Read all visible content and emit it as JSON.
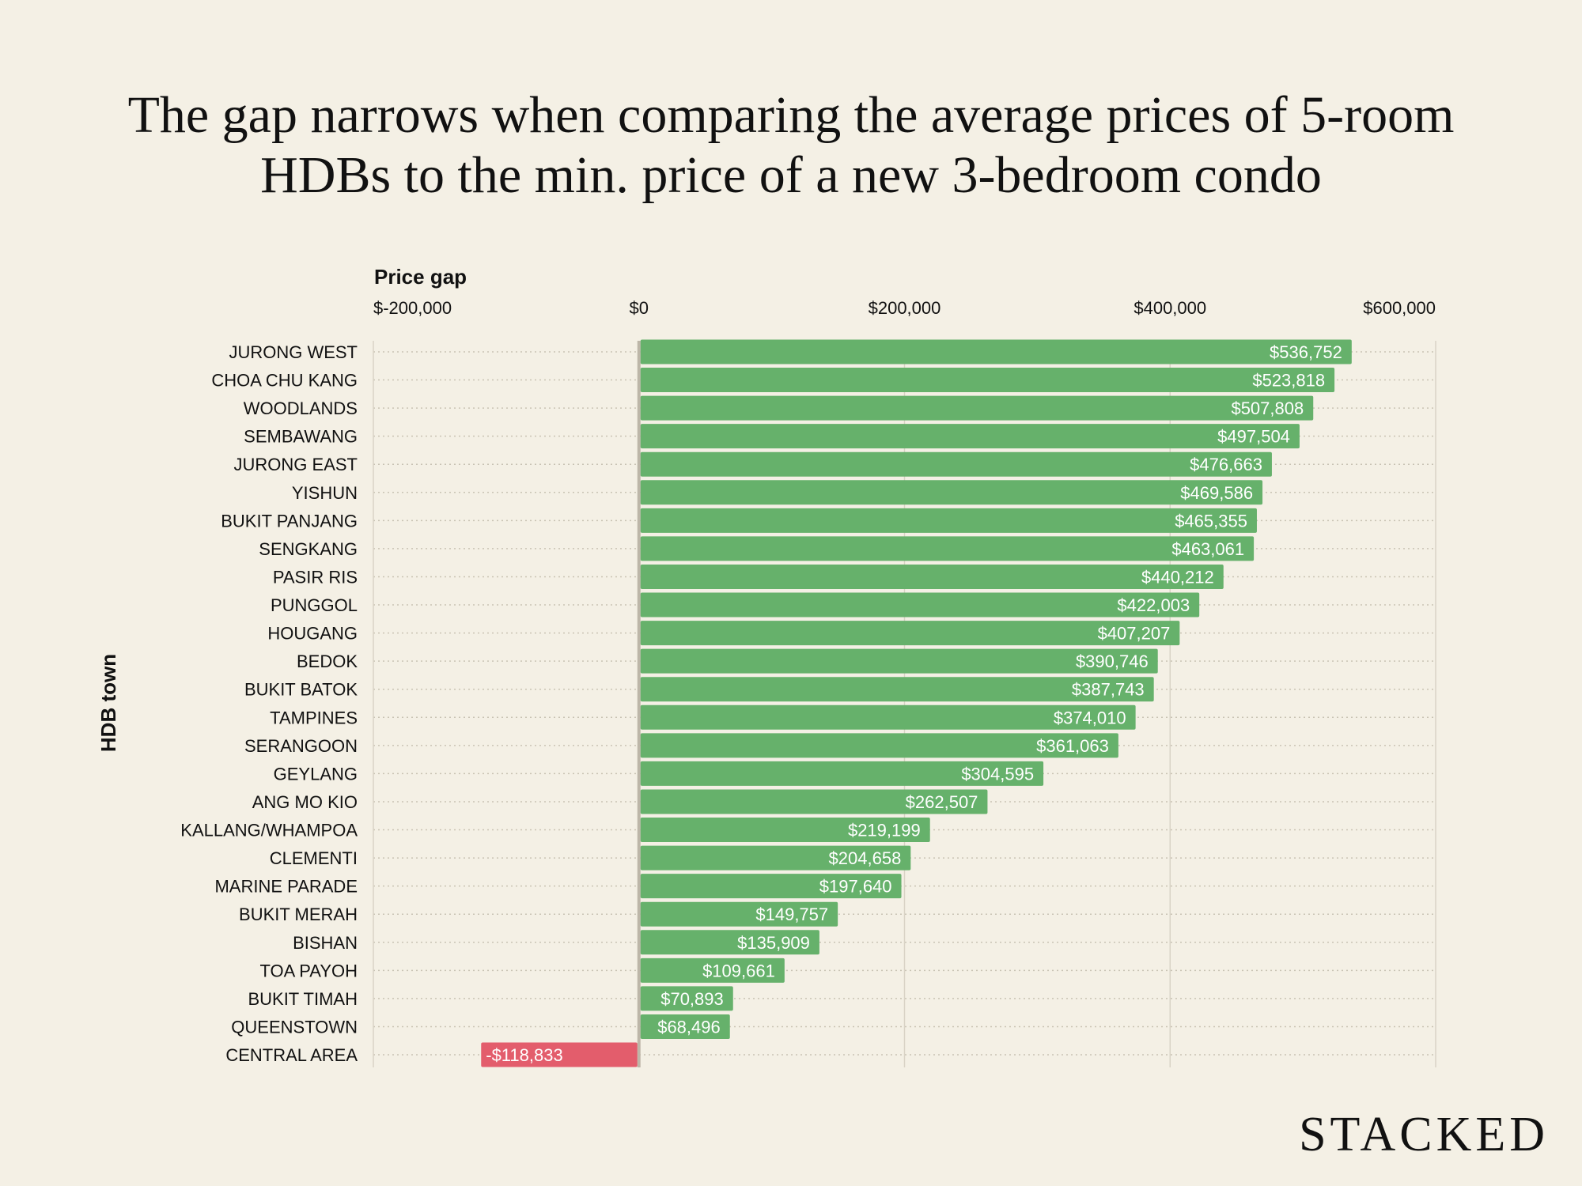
{
  "title_lines": [
    "The gap narrows when comparing the average prices of 5-room",
    "HDBs to the min. price of a new 3-bedroom condo"
  ],
  "logo": "STACKED",
  "chart_data": {
    "type": "bar",
    "orientation": "horizontal",
    "title": "The gap narrows when comparing the average prices of 5-room HDBs to the min. price of a new 3-bedroom condo",
    "xlabel": "Price gap",
    "ylabel": "HDB town",
    "xlim": [
      -200000,
      600000
    ],
    "x_ticks": [
      -200000,
      0,
      200000,
      400000,
      600000
    ],
    "x_tick_labels": [
      "$-200,000",
      "$0",
      "$200,000",
      "$400,000",
      "$600,000"
    ],
    "x_axis_position": "top",
    "grid": "vertical solid at ticks, horizontal dotted per row",
    "colors": {
      "positive": "#66b16b",
      "negative": "#e35d6c",
      "background": "#f4f0e5"
    },
    "categories": [
      "JURONG WEST",
      "CHOA CHU KANG",
      "WOODLANDS",
      "SEMBAWANG",
      "JURONG EAST",
      "YISHUN",
      "BUKIT PANJANG",
      "SENGKANG",
      "PASIR RIS",
      "PUNGGOL",
      "HOUGANG",
      "BEDOK",
      "BUKIT BATOK",
      "TAMPINES",
      "SERANGOON",
      "GEYLANG",
      "ANG MO KIO",
      "KALLANG/WHAMPOA",
      "CLEMENTI",
      "MARINE PARADE",
      "BUKIT MERAH",
      "BISHAN",
      "TOA PAYOH",
      "BUKIT TIMAH",
      "QUEENSTOWN",
      "CENTRAL AREA"
    ],
    "values": [
      536752,
      523818,
      507808,
      497504,
      476663,
      469586,
      465355,
      463061,
      440212,
      422003,
      407207,
      390746,
      387743,
      374010,
      361063,
      304595,
      262507,
      219199,
      204658,
      197640,
      149757,
      135909,
      109661,
      70893,
      68496,
      -118833
    ],
    "data_labels": [
      "$536,752",
      "$523,818",
      "$507,808",
      "$497,504",
      "$476,663",
      "$469,586",
      "$465,355",
      "$463,061",
      "$440,212",
      "$422,003",
      "$407,207",
      "$390,746",
      "$387,743",
      "$374,010",
      "$361,063",
      "$304,595",
      "$262,507",
      "$219,199",
      "$204,658",
      "$197,640",
      "$149,757",
      "$135,909",
      "$109,661",
      "$70,893",
      "$68,496",
      "-$118,833"
    ]
  }
}
